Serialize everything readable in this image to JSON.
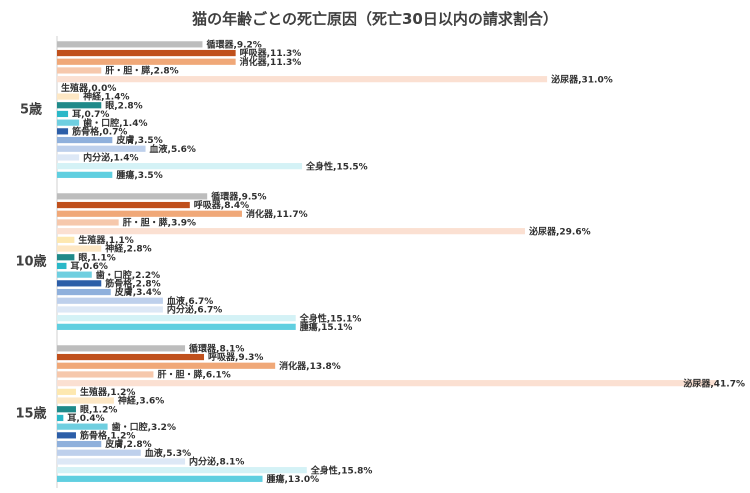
{
  "chart_data": {
    "type": "bar",
    "orientation": "horizontal",
    "title": "猫の年齢ごとの死亡原因（死亡30日以内の請求割合）",
    "xlabel": "",
    "ylabel": "",
    "xlim": [
      0,
      42
    ],
    "grid": false,
    "legend": "none",
    "categories": [
      "循環器",
      "呼吸器",
      "消化器",
      "肝・胆・膵",
      "泌尿器",
      "生殖器",
      "神経",
      "眼",
      "耳",
      "歯・口腔",
      "筋骨格",
      "皮膚",
      "血液",
      "内分泌",
      "全身性",
      "腫瘍"
    ],
    "category_colors": [
      "#bdbdbd",
      "#c0501c",
      "#f0a878",
      "#f6c8ac",
      "#fbe0d2",
      "#fde8b0",
      "#fde7c4",
      "#1f8a8a",
      "#2ab8c8",
      "#6fcfe0",
      "#2c5ea8",
      "#8fb0dc",
      "#bed0ec",
      "#dde8f6",
      "#d4f2f6",
      "#60cfe0"
    ],
    "groups": [
      {
        "name": "5歳",
        "labels": [
          "循環器,9.2%",
          "呼吸器,11.3%",
          "消化器,11.3%",
          "肝・胆・膵,2.8%",
          "泌尿器,31.0%",
          "生殖器,0.0%",
          "神経,1.4%",
          "眼,2.8%",
          "耳,0.7%",
          "歯・口腔,1.4%",
          "筋骨格,0.7%",
          "皮膚,3.5%",
          "血液,5.6%",
          "内分泌,1.4%",
          "全身性,15.5%",
          "腫瘍,3.5%"
        ],
        "values": [
          9.2,
          11.3,
          11.3,
          2.8,
          31.0,
          0.0,
          1.4,
          2.8,
          0.7,
          1.4,
          0.7,
          3.5,
          5.6,
          1.4,
          15.5,
          3.5
        ]
      },
      {
        "name": "10歳",
        "labels": [
          "循環器,9.5%",
          "呼吸器,8.4%",
          "消化器,11.7%",
          "肝・胆・膵,3.9%",
          "泌尿器,29.6%",
          "生殖器,1.1%",
          "神経,2.8%",
          "眼,1.1%",
          "耳,0.6%",
          "歯・口腔,2.2%",
          "筋骨格,2.8%",
          "皮膚,3.4%",
          "血液,6.7%",
          "内分泌,6.7%",
          "全身性,15.1%",
          "腫瘍,15.1%"
        ],
        "values": [
          9.5,
          8.4,
          11.7,
          3.9,
          29.6,
          1.1,
          2.8,
          1.1,
          0.6,
          2.2,
          2.8,
          3.4,
          6.7,
          6.7,
          15.1,
          15.1
        ]
      },
      {
        "name": "15歳",
        "labels": [
          "循環器,8.1%",
          "呼吸器,9.3%",
          "消化器,13.8%",
          "肝・胆・膵,6.1%",
          "泌尿器,41.7%",
          "生殖器,1.2%",
          "神経,3.6%",
          "眼,1.2%",
          "耳,0.4%",
          "歯・口腔,3.2%",
          "筋骨格,1.2%",
          "皮膚,2.8%",
          "血液,5.3%",
          "内分泌,8.1%",
          "全身性,15.8%",
          "腫瘍,13.0%"
        ],
        "values": [
          8.1,
          9.3,
          13.8,
          6.1,
          41.7,
          1.2,
          3.6,
          1.2,
          0.4,
          3.2,
          1.2,
          2.8,
          5.3,
          8.1,
          15.8,
          13.0
        ]
      }
    ]
  }
}
